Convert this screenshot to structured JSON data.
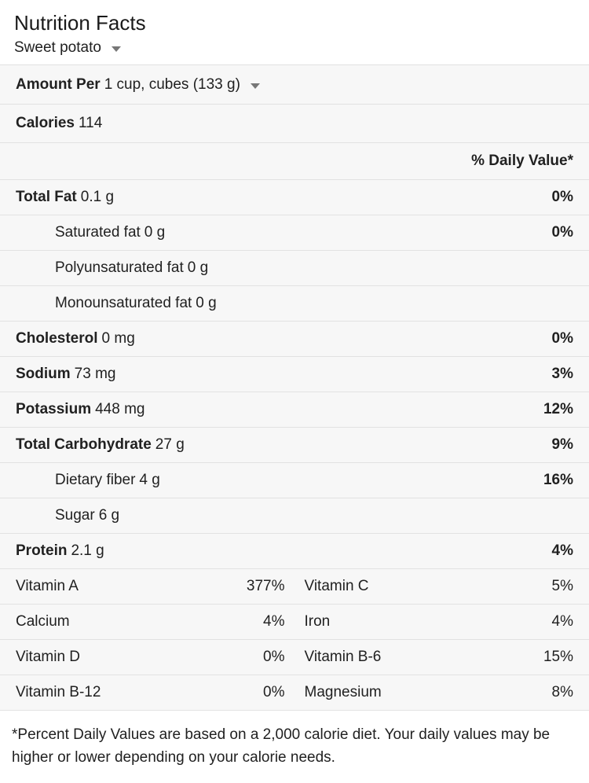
{
  "panel": {
    "title": "Nutrition Facts",
    "food": {
      "label": "Sweet potato"
    },
    "serving": {
      "prefix": "Amount Per",
      "value": "1 cup, cubes (133 g)"
    },
    "calories": {
      "label": "Calories",
      "value": "114"
    },
    "dv_header": "% Daily Value*",
    "rows": [
      {
        "label": "Total Fat",
        "amount": "0.1 g",
        "dv": "0%",
        "bold": true,
        "indent": false
      },
      {
        "label": "Saturated fat",
        "amount": "0 g",
        "dv": "0%",
        "bold": false,
        "indent": true
      },
      {
        "label": "Polyunsaturated fat",
        "amount": "0 g",
        "dv": "",
        "bold": false,
        "indent": true
      },
      {
        "label": "Monounsaturated fat",
        "amount": "0 g",
        "dv": "",
        "bold": false,
        "indent": true
      },
      {
        "label": "Cholesterol",
        "amount": "0 mg",
        "dv": "0%",
        "bold": true,
        "indent": false
      },
      {
        "label": "Sodium",
        "amount": "73 mg",
        "dv": "3%",
        "bold": true,
        "indent": false
      },
      {
        "label": "Potassium",
        "amount": "448 mg",
        "dv": "12%",
        "bold": true,
        "indent": false
      },
      {
        "label": "Total Carbohydrate",
        "amount": "27 g",
        "dv": "9%",
        "bold": true,
        "indent": false
      },
      {
        "label": "Dietary fiber",
        "amount": "4 g",
        "dv": "16%",
        "bold": false,
        "indent": true
      },
      {
        "label": "Sugar",
        "amount": "6 g",
        "dv": "",
        "bold": false,
        "indent": true
      },
      {
        "label": "Protein",
        "amount": "2.1 g",
        "dv": "4%",
        "bold": true,
        "indent": false
      }
    ],
    "micronutrients": [
      {
        "left": {
          "label": "Vitamin A",
          "dv": "377%"
        },
        "right": {
          "label": "Vitamin C",
          "dv": "5%"
        }
      },
      {
        "left": {
          "label": "Calcium",
          "dv": "4%"
        },
        "right": {
          "label": "Iron",
          "dv": "4%"
        }
      },
      {
        "left": {
          "label": "Vitamin D",
          "dv": "0%"
        },
        "right": {
          "label": "Vitamin B-6",
          "dv": "15%"
        }
      },
      {
        "left": {
          "label": "Vitamin B-12",
          "dv": "0%"
        },
        "right": {
          "label": "Magnesium",
          "dv": "8%"
        }
      }
    ],
    "footnote": "*Percent Daily Values are based on a 2,000 calorie diet. Your daily values may be higher or lower depending on your calorie needs.",
    "colors": {
      "row_background": "#f7f7f7",
      "divider": "#e2e2e2",
      "text": "#212121",
      "dropdown_arrow": "#777777"
    }
  }
}
